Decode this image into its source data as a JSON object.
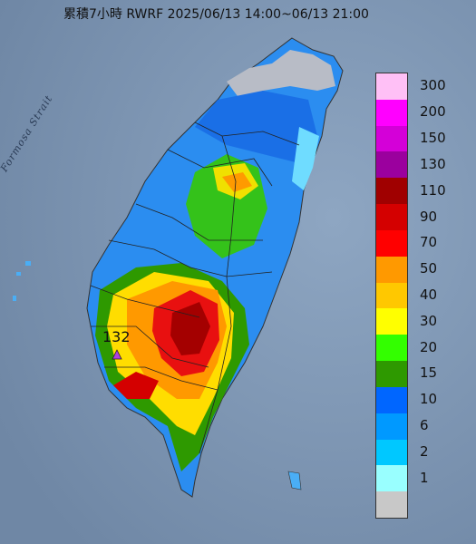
{
  "title": "累積7小時 RWRF 2025/06/13 14:00~06/13 21:00",
  "map_labels": {
    "strait": "Formosa Strait"
  },
  "station": {
    "value": "132",
    "marker_icon": "triangle-marker-icon",
    "marker_color": "#b040e0"
  },
  "legend": {
    "items": [
      {
        "label": "300",
        "color": "#ffc0f6"
      },
      {
        "label": "200",
        "color": "#ff00ff"
      },
      {
        "label": "150",
        "color": "#d400d8"
      },
      {
        "label": "130",
        "color": "#9b009e"
      },
      {
        "label": "110",
        "color": "#a00000"
      },
      {
        "label": "90",
        "color": "#d40000"
      },
      {
        "label": "70",
        "color": "#ff0000"
      },
      {
        "label": "50",
        "color": "#ff9900"
      },
      {
        "label": "40",
        "color": "#ffc800"
      },
      {
        "label": "30",
        "color": "#ffff00"
      },
      {
        "label": "20",
        "color": "#33ff00"
      },
      {
        "label": "15",
        "color": "#2e9900"
      },
      {
        "label": "10",
        "color": "#0066ff"
      },
      {
        "label": "6",
        "color": "#0099ff"
      },
      {
        "label": "2",
        "color": "#00c8ff"
      },
      {
        "label": "1",
        "color": "#99ffff"
      },
      {
        "label": "",
        "color": "#c8c8c8"
      }
    ]
  },
  "colors": {
    "sea": "#7f97b3",
    "land_light": "#1f8fe8",
    "border": "#222222"
  }
}
